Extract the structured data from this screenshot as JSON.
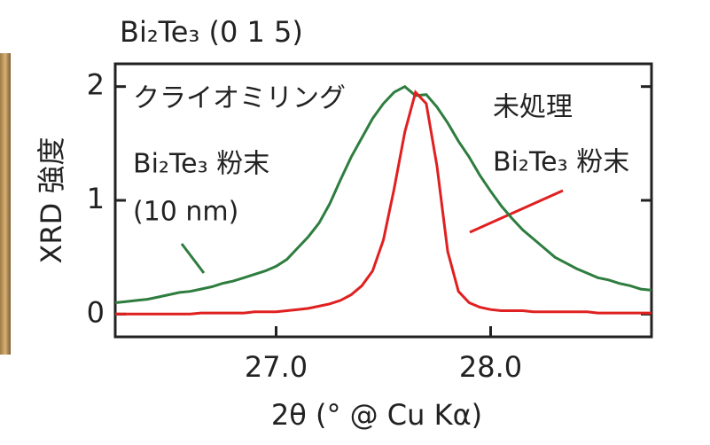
{
  "chart_data": {
    "type": "line",
    "title": "Bi₂Te₃ (0 1 5)",
    "xlabel": "2θ (°  @ Cu Kα)",
    "ylabel": "XRD 強度",
    "annotations": [
      "クライオミリング",
      "Bi₂Te₃ 粉末",
      "(10 nm)",
      "未処理",
      "Bi₂Te₃ 粉末"
    ],
    "x": [
      26.25,
      26.3,
      26.35,
      26.4,
      26.45,
      26.5,
      26.55,
      26.6,
      26.65,
      26.7,
      26.75,
      26.8,
      26.85,
      26.9,
      26.95,
      27.0,
      27.05,
      27.1,
      27.15,
      27.2,
      27.25,
      27.3,
      27.35,
      27.4,
      27.45,
      27.5,
      27.55,
      27.6,
      27.65,
      27.7,
      27.75,
      27.8,
      27.85,
      27.9,
      27.95,
      28.0,
      28.05,
      28.1,
      28.15,
      28.2,
      28.25,
      28.3,
      28.35,
      28.4,
      28.45,
      28.5,
      28.55,
      28.6,
      28.65,
      28.7,
      28.75
    ],
    "series": [
      {
        "color": "#2e7d3f",
        "values": [
          0.1,
          0.11,
          0.12,
          0.13,
          0.15,
          0.17,
          0.19,
          0.2,
          0.22,
          0.24,
          0.27,
          0.29,
          0.32,
          0.35,
          0.38,
          0.42,
          0.48,
          0.58,
          0.68,
          0.8,
          0.97,
          1.18,
          1.38,
          1.55,
          1.72,
          1.85,
          1.95,
          2.0,
          1.92,
          1.93,
          1.82,
          1.68,
          1.52,
          1.38,
          1.22,
          1.08,
          0.95,
          0.84,
          0.74,
          0.66,
          0.58,
          0.5,
          0.45,
          0.4,
          0.36,
          0.32,
          0.3,
          0.27,
          0.25,
          0.22,
          0.21
        ]
      },
      {
        "color": "#e02020",
        "values": [
          0,
          0,
          0,
          0,
          0,
          0,
          0,
          0,
          0.01,
          0.01,
          0.01,
          0.01,
          0.01,
          0.02,
          0.02,
          0.02,
          0.03,
          0.04,
          0.05,
          0.07,
          0.09,
          0.12,
          0.17,
          0.25,
          0.38,
          0.65,
          1.1,
          1.6,
          1.95,
          1.85,
          1.3,
          0.55,
          0.2,
          0.1,
          0.06,
          0.04,
          0.03,
          0.03,
          0.03,
          0.02,
          0.02,
          0.02,
          0.02,
          0.02,
          0.02,
          0.01,
          0.01,
          0.01,
          0.01,
          0.01,
          0.01
        ]
      }
    ],
    "xlim": [
      26.25,
      28.75
    ],
    "ylim": [
      -0.2,
      2.2
    ],
    "xticks": [
      {
        "value": 27,
        "label": "27.0"
      },
      {
        "value": 28,
        "label": "28.0"
      }
    ],
    "yticks": [
      0,
      1,
      2
    ]
  }
}
